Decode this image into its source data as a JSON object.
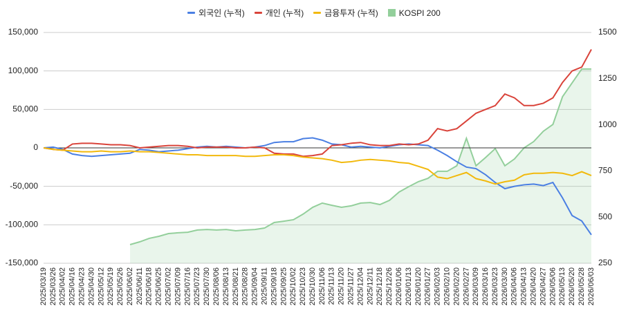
{
  "chart_data": {
    "type": "line",
    "categories": [
      "2025/03/19",
      "2025/03/26",
      "2025/04/02",
      "2025/04/16",
      "2025/04/23",
      "2025/04/30",
      "2025/05/12",
      "2025/05/19",
      "2025/05/26",
      "2025/06/02",
      "2025/06/11",
      "2025/06/18",
      "2025/06/25",
      "2025/07/02",
      "2025/07/09",
      "2025/07/16",
      "2025/07/23",
      "2025/07/30",
      "2025/08/06",
      "2025/08/13",
      "2025/08/21",
      "2025/08/28",
      "2025/09/04",
      "2025/09/11",
      "2025/09/18",
      "2025/09/25",
      "2025/10/02",
      "2025/10/23",
      "2025/10/30",
      "2025/11/06",
      "2025/11/13",
      "2025/11/20",
      "2025/11/27",
      "2025/12/04",
      "2025/12/11",
      "2025/12/18",
      "2025/12/26",
      "2026/01/06",
      "2026/01/13",
      "2026/01/20",
      "2026/01/27",
      "2026/02/03",
      "2026/02/10",
      "2026/02/20",
      "2026/02/27",
      "2026/03/09",
      "2026/03/16",
      "2026/03/23",
      "2026/03/30",
      "2026/04/06",
      "2026/04/13",
      "2026/04/20",
      "2026/04/27",
      "2026/05/06",
      "2026/05/13",
      "2026/05/20",
      "2026/05/28",
      "2026/06/03"
    ],
    "series": [
      {
        "name": "외국인 (누적)",
        "color": "#4a7fe3",
        "values": [
          0,
          1000,
          -2000,
          -8000,
          -10000,
          -11000,
          -10000,
          -9000,
          -8000,
          -7000,
          -2000,
          -3000,
          -5000,
          -4000,
          -3000,
          -1000,
          1000,
          2000,
          1000,
          2000,
          1000,
          0,
          1000,
          3000,
          7000,
          8000,
          8000,
          12000,
          13000,
          10000,
          5000,
          4000,
          1000,
          2000,
          1000,
          0,
          2000,
          4000,
          5000,
          4000,
          3000,
          -3000,
          -10000,
          -18000,
          -25000,
          -27000,
          -35000,
          -45000,
          -53000,
          -50000,
          -48000,
          -47000,
          -49000,
          -45000,
          -65000,
          -88000,
          -95000,
          -113000
        ]
      },
      {
        "name": "개인 (누적)",
        "color": "#d9433a",
        "values": [
          0,
          -2000,
          -3000,
          5000,
          6000,
          6000,
          5000,
          4000,
          4000,
          3000,
          0,
          1000,
          2000,
          3000,
          3000,
          2000,
          0,
          1000,
          1000,
          1000,
          0,
          0,
          1000,
          0,
          -7000,
          -8000,
          -8000,
          -11000,
          -10000,
          -8000,
          3000,
          4000,
          6000,
          7000,
          4000,
          3000,
          3000,
          5000,
          4000,
          5000,
          10000,
          25000,
          22000,
          25000,
          35000,
          45000,
          50000,
          55000,
          70000,
          65000,
          55000,
          55000,
          58000,
          65000,
          85000,
          100000,
          105000,
          128000
        ]
      },
      {
        "name": "금융투자 (누적)",
        "color": "#f2b90c",
        "values": [
          0,
          -2000,
          -3000,
          -4000,
          -5000,
          -5000,
          -4000,
          -5000,
          -5000,
          -4000,
          -5000,
          -5000,
          -6000,
          -7000,
          -8000,
          -9000,
          -9000,
          -10000,
          -10000,
          -10000,
          -10000,
          -11000,
          -11000,
          -10000,
          -9000,
          -9000,
          -10000,
          -12000,
          -13000,
          -14000,
          -16000,
          -19000,
          -18000,
          -16000,
          -15000,
          -16000,
          -17000,
          -19000,
          -20000,
          -24000,
          -28000,
          -38000,
          -40000,
          -36000,
          -32000,
          -40000,
          -43000,
          -47000,
          -44000,
          -42000,
          -35000,
          -33000,
          -33000,
          -32000,
          -33000,
          -36000,
          -31000,
          -36000
        ]
      },
      {
        "name": "KOSPI 200",
        "color": "#93cf9b",
        "type": "area",
        "axis": "y2",
        "values": [
          null,
          null,
          null,
          null,
          null,
          null,
          null,
          null,
          null,
          351,
          366,
          385,
          396,
          411,
          415,
          418,
          430,
          433,
          430,
          433,
          426,
          430,
          433,
          441,
          471,
          478,
          486,
          516,
          553,
          576,
          564,
          553,
          561,
          576,
          579,
          568,
          591,
          636,
          665,
          692,
          710,
          748,
          748,
          778,
          927,
          778,
          823,
          871,
          778,
          815,
          875,
          909,
          965,
          1002,
          1152,
          1227,
          1302,
          1302
        ]
      }
    ],
    "ylim": [
      -150000,
      150000
    ],
    "yticks": [
      {
        "value": -150000,
        "label": "-150,000"
      },
      {
        "value": -100000,
        "label": "-100,000"
      },
      {
        "value": -50000,
        "label": "-50,000"
      },
      0,
      {
        "value": 50000,
        "label": "50,000"
      },
      {
        "value": 100000,
        "label": "100,000"
      },
      {
        "value": 150000,
        "label": "150,000"
      }
    ],
    "y2lim": [
      250,
      1500
    ],
    "y2ticks": [
      250,
      500,
      750,
      1000,
      1250,
      1500
    ],
    "grid": true,
    "legend": "top"
  }
}
